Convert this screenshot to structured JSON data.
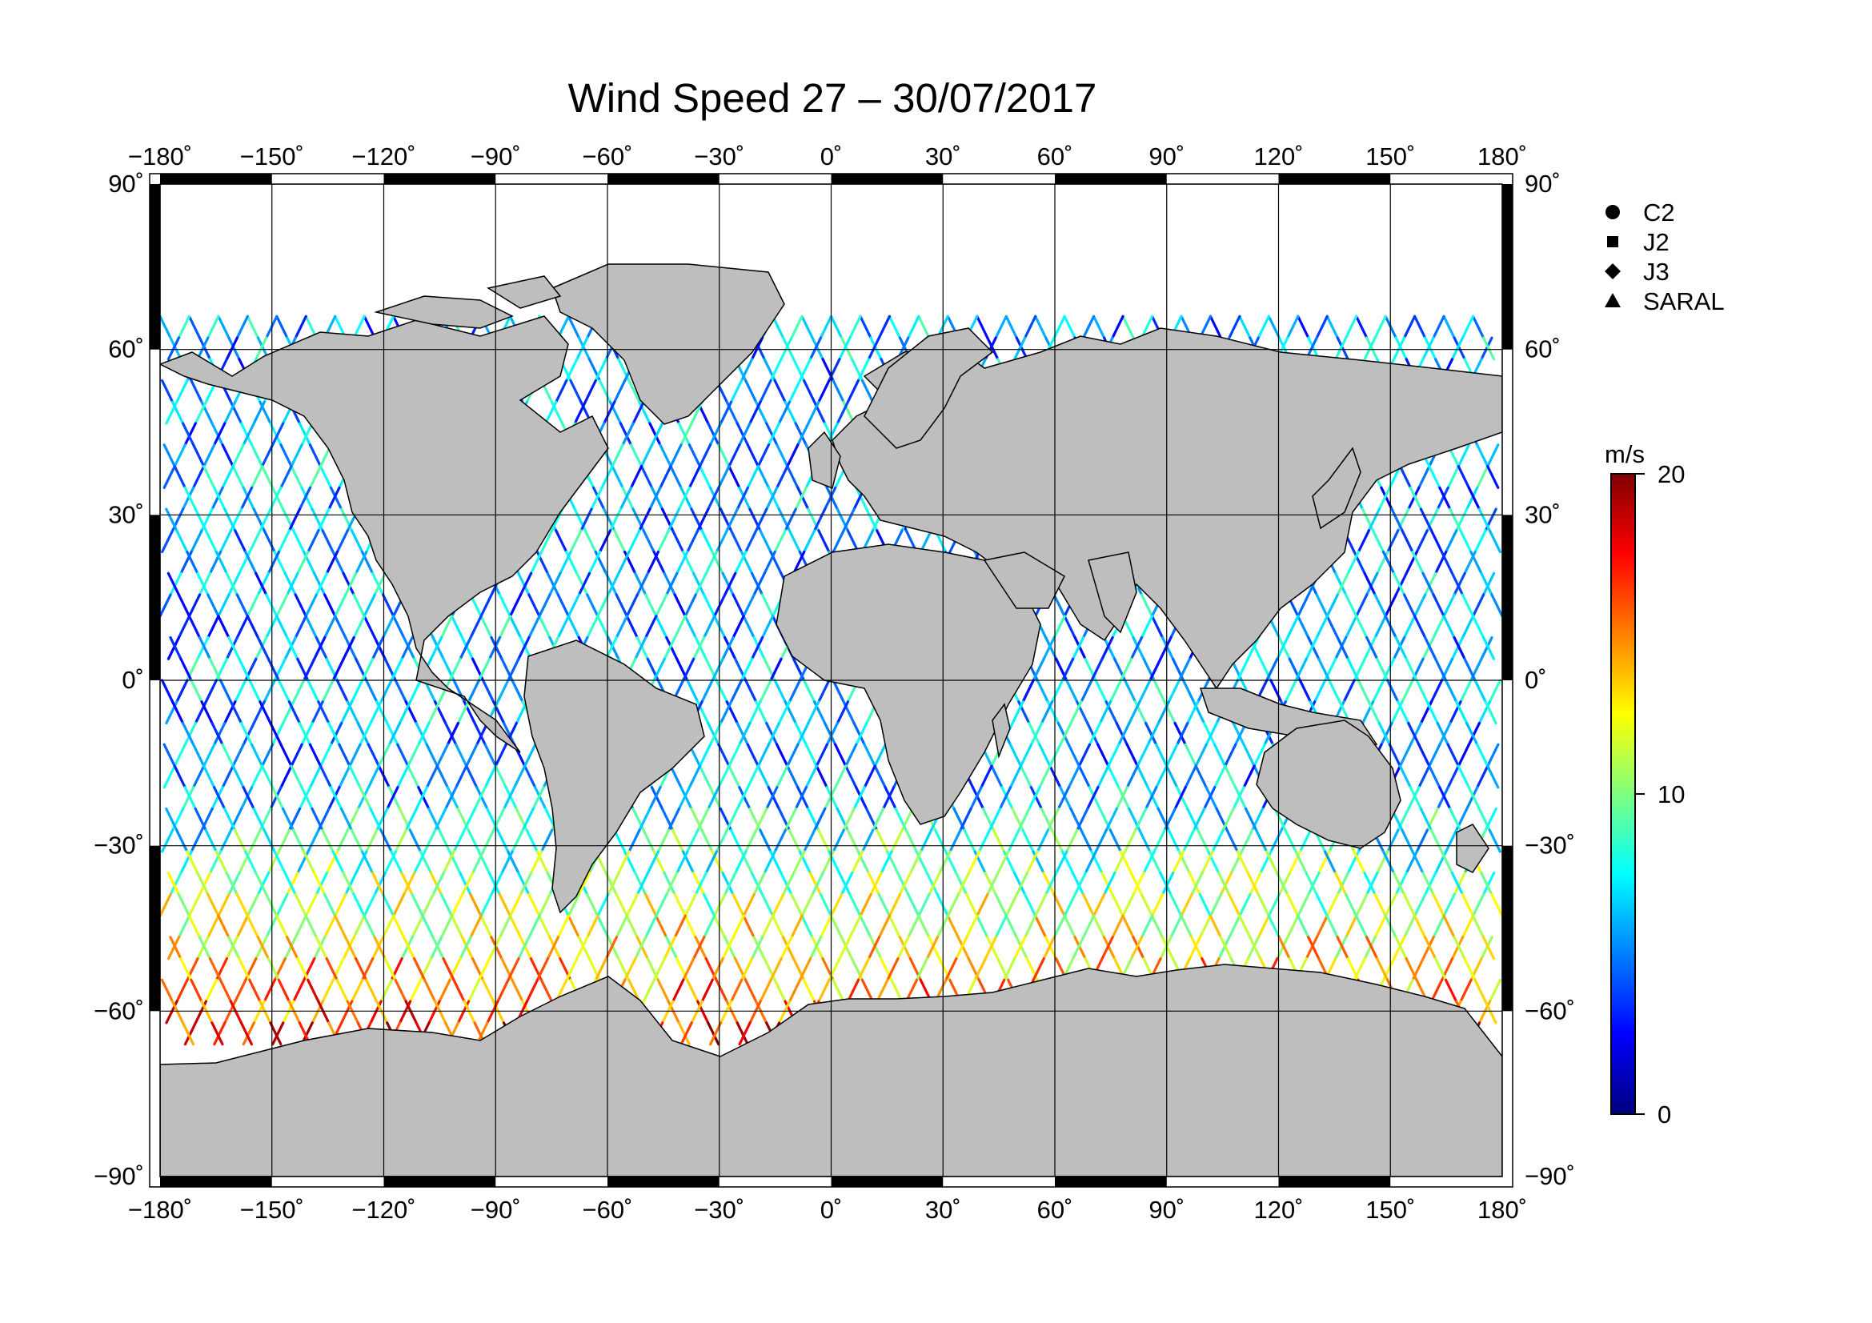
{
  "title": "Wind Speed 27 – 30/07/2017",
  "lon_ticks": [
    "−180˚",
    "−150˚",
    "−120˚",
    "−90˚",
    "−60˚",
    "−30˚",
    "0˚",
    "30˚",
    "60˚",
    "90˚",
    "120˚",
    "150˚",
    "180˚"
  ],
  "lat_ticks": [
    "90˚",
    "60˚",
    "30˚",
    "0˚",
    "−30˚",
    "−60˚",
    "−90˚"
  ],
  "lat_ticks_right": [
    "90˚",
    "60˚",
    "30˚",
    "0˚",
    "−30˚",
    "−60˚",
    "−90˚"
  ],
  "legend": [
    {
      "symbol": "circle",
      "label": "C2"
    },
    {
      "symbol": "square",
      "label": "J2"
    },
    {
      "symbol": "diamond",
      "label": "J3"
    },
    {
      "symbol": "triangle",
      "label": "SARAL"
    }
  ],
  "colorbar": {
    "unit": "m/s",
    "min": 0,
    "max": 20,
    "ticks": [
      "0",
      "10",
      "20"
    ],
    "colors": [
      "#00007f",
      "#0000ff",
      "#007fff",
      "#00ffff",
      "#7fff7f",
      "#ffff00",
      "#ff7f00",
      "#ff0000",
      "#7f0000"
    ]
  },
  "map": {
    "land_color": "#bebebe",
    "ocean_color": "#ffffff",
    "lon_range": [
      -180,
      180
    ],
    "lat_range": [
      -90,
      90
    ],
    "grid_step_deg": 30
  }
}
